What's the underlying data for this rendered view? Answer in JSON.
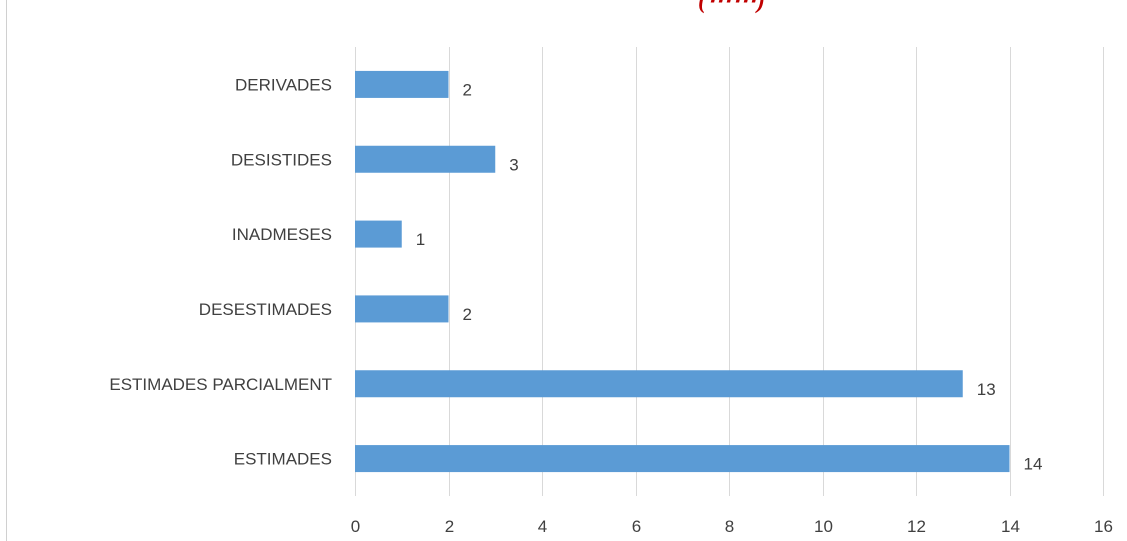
{
  "title_fragment": "(⋯⋯)",
  "chart_data": {
    "type": "bar",
    "orientation": "horizontal",
    "categories": [
      "ESTIMADES",
      "ESTIMADES PARCIALMENT",
      "DESESTIMADES",
      "INADMESES",
      "DESISTIDES",
      "DERIVADES"
    ],
    "values": [
      14,
      13,
      2,
      1,
      3,
      2
    ],
    "xlim": [
      0,
      16
    ],
    "xticks": [
      0,
      2,
      4,
      6,
      8,
      10,
      12,
      14,
      16
    ],
    "grid": "vertical",
    "legend": "none",
    "data_labels": true,
    "colors": {
      "bar": "#5b9bd5",
      "grid": "#d9d9d9",
      "text": "#404040",
      "title": "#c00000"
    }
  }
}
